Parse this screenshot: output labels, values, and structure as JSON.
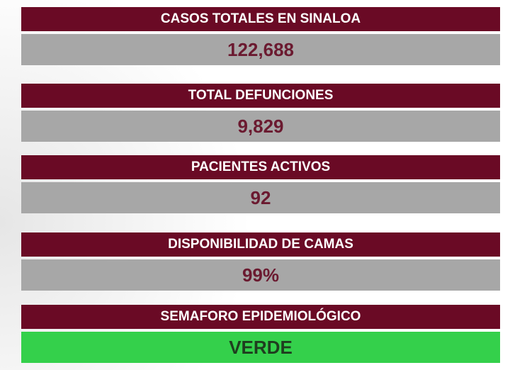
{
  "panels": [
    {
      "label": "CASOS TOTALES EN SINALOA",
      "value": "122,688"
    },
    {
      "label": "TOTAL DEFUNCIONES",
      "value": "9,829"
    },
    {
      "label": "PACIENTES ACTIVOS",
      "value": "92"
    },
    {
      "label": "DISPONIBILIDAD DE CAMAS",
      "value": "99%"
    },
    {
      "label": "SEMAFORO EPIDEMIOLÓGICO",
      "value": "VERDE"
    }
  ]
}
